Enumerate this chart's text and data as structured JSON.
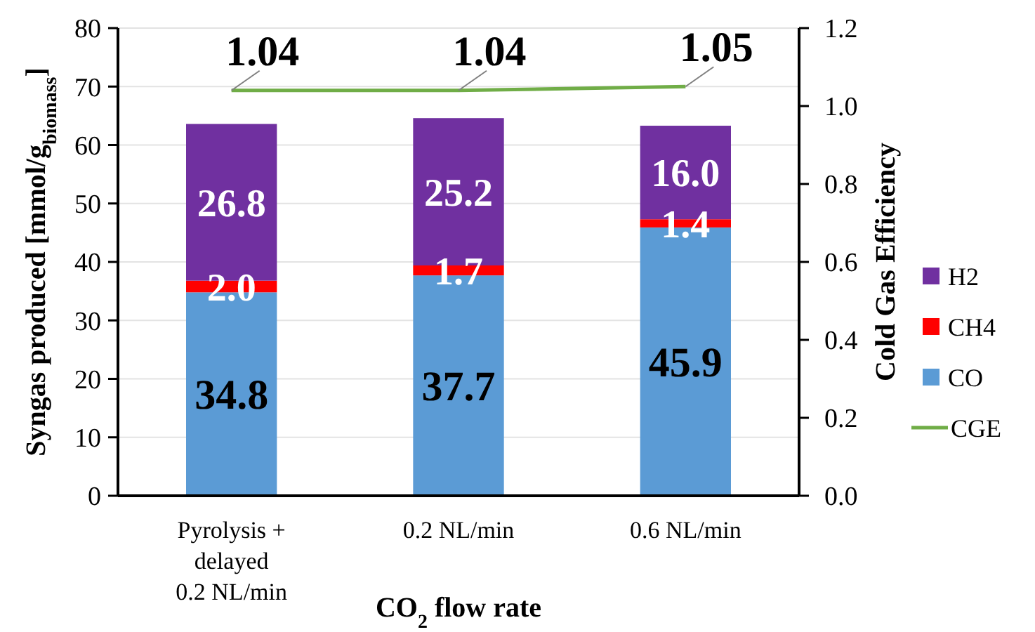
{
  "chart_data": {
    "type": "bar",
    "stacked": true,
    "categories": [
      "Pyrolysis + delayed 0.2 NL/min",
      "0.2 NL/min",
      "0.6 NL/min"
    ],
    "series": [
      {
        "name": "CO",
        "color": "#5b9bd5",
        "values": [
          34.8,
          37.7,
          45.9
        ],
        "value_labels": [
          "34.8",
          "37.7",
          "45.9"
        ]
      },
      {
        "name": "CH4",
        "color": "#ff0000",
        "values": [
          2.0,
          1.7,
          1.4
        ],
        "value_labels": [
          "2.0",
          "1.7",
          "1.4"
        ]
      },
      {
        "name": "H2",
        "color": "#7030a0",
        "values": [
          26.8,
          25.2,
          16.0
        ],
        "value_labels": [
          "26.8",
          "25.2",
          "16.0"
        ]
      },
      {
        "name": "CGE",
        "type": "line",
        "axis": "y2",
        "color": "#70ad47",
        "values": [
          1.04,
          1.04,
          1.05
        ],
        "value_labels": [
          "1.04",
          "1.04",
          "1.05"
        ]
      }
    ],
    "xlabel": "CO$_{2}$ flow rate",
    "ylabel": "Syngas produced [mmol/g$_{biomass}$]",
    "y2label": "Cold Gas Efficiency",
    "ylim": [
      0,
      80
    ],
    "yticks": [
      0,
      10,
      20,
      30,
      40,
      50,
      60,
      70,
      80
    ],
    "y2lim": [
      0,
      1.2
    ],
    "y2ticks": [
      {
        "value": 0,
        "label": "0.0"
      },
      {
        "value": 0.2,
        "label": "0.2"
      },
      {
        "value": 0.4,
        "label": "0.4"
      },
      {
        "value": 0.6,
        "label": "0.6"
      },
      {
        "value": 0.8,
        "label": "0.8"
      },
      {
        "value": 1.0,
        "label": "1.0"
      },
      {
        "value": 1.2,
        "label": "1.2"
      }
    ],
    "grid": "y",
    "legend": "right"
  }
}
